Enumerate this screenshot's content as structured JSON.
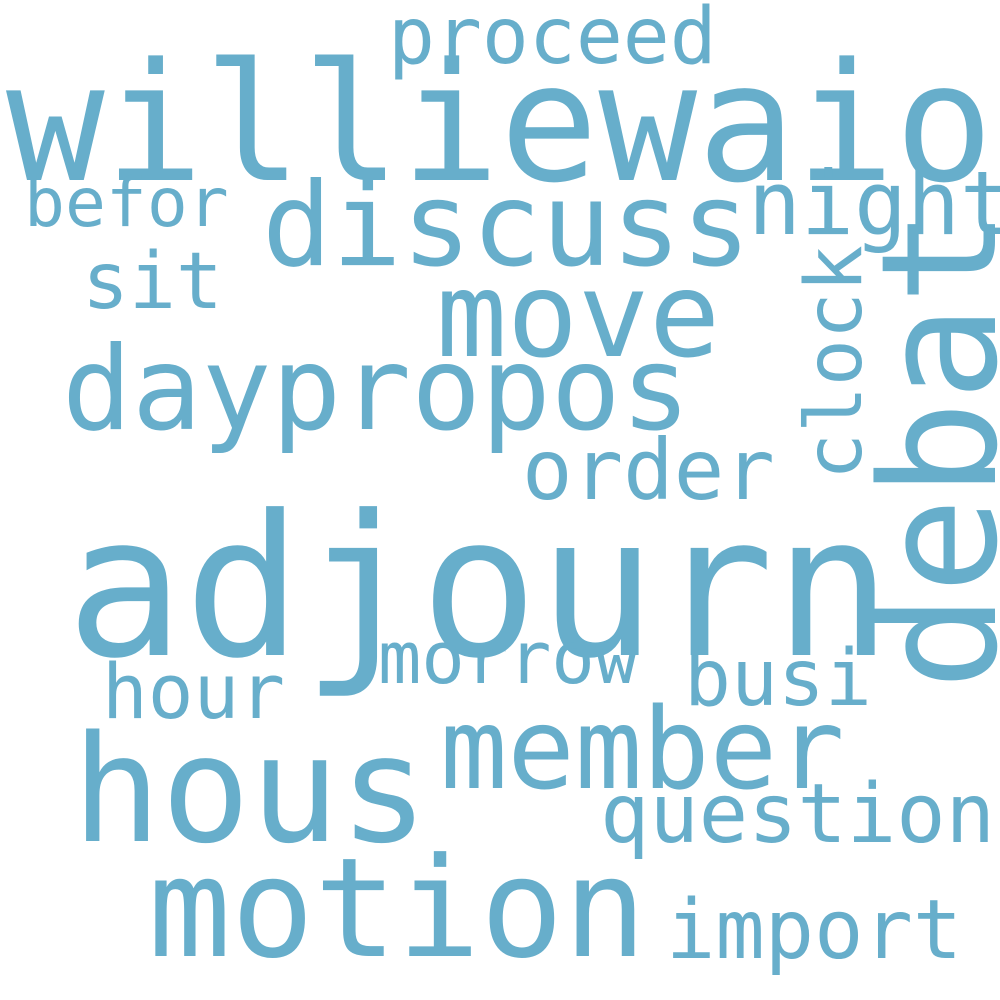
{
  "words": [
    {
      "key": "adjourn",
      "text": "adjourn",
      "weight": 1.0
    },
    {
      "key": "williewaiola",
      "text": "williewaiola",
      "weight": 0.82
    },
    {
      "key": "debat",
      "text": "debat",
      "weight": 0.8
    },
    {
      "key": "hous",
      "text": "hous",
      "weight": 0.72
    },
    {
      "key": "motion",
      "text": "motion",
      "weight": 0.7
    },
    {
      "key": "discuss",
      "text": "discuss",
      "weight": 0.62
    },
    {
      "key": "daypropos",
      "text": "daypropos",
      "weight": 0.6
    },
    {
      "key": "move",
      "text": "move",
      "weight": 0.6
    },
    {
      "key": "member",
      "text": "member",
      "weight": 0.58
    },
    {
      "key": "question",
      "text": "question",
      "weight": 0.46
    },
    {
      "key": "import",
      "text": "import",
      "weight": 0.44
    },
    {
      "key": "order",
      "text": "order",
      "weight": 0.44
    },
    {
      "key": "night",
      "text": "night",
      "weight": 0.43
    },
    {
      "key": "clock",
      "text": "clock",
      "weight": 0.4
    },
    {
      "key": "proceed",
      "text": "proceed",
      "weight": 0.4
    },
    {
      "key": "hour",
      "text": "hour",
      "weight": 0.39
    },
    {
      "key": "morrow",
      "text": "morrow",
      "weight": 0.38
    },
    {
      "key": "busi",
      "text": "busi",
      "weight": 0.38
    },
    {
      "key": "sit",
      "text": "sit",
      "weight": 0.37
    },
    {
      "key": "befor",
      "text": "befor",
      "weight": 0.36
    }
  ],
  "colors": {
    "word": "#67AECB",
    "background": "#FFFFFF"
  }
}
